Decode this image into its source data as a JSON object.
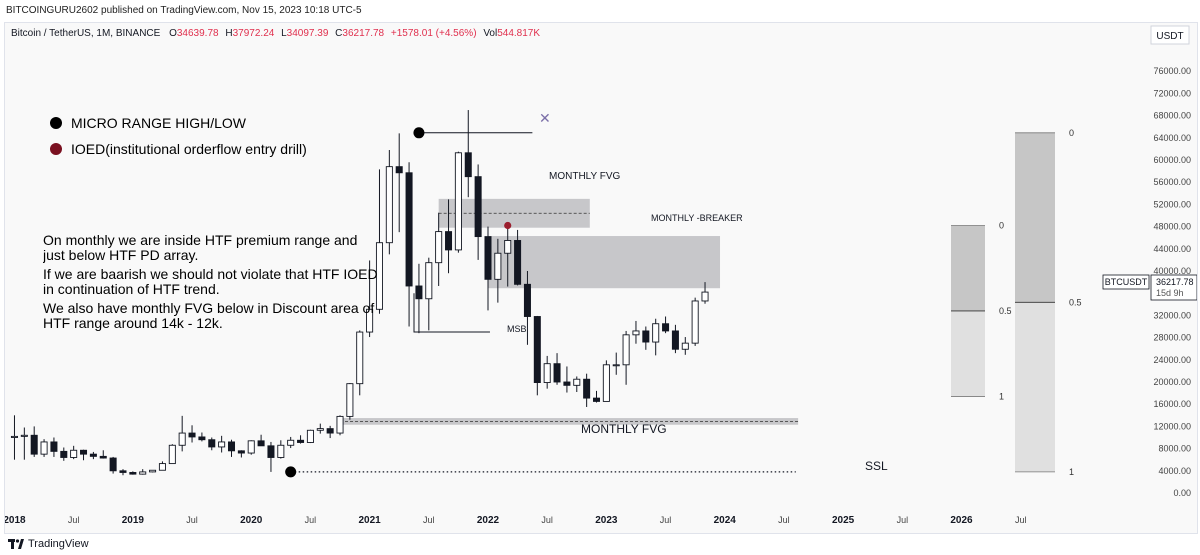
{
  "header": {
    "published": "BITCOINGURU2602 published on TradingView.com, Nov 15, 2023 10:18 UTC-5"
  },
  "chart_header": {
    "symbol": "Bitcoin / TetherUS, 1M, BINANCE",
    "o_label": "O",
    "o": "34639.78",
    "h_label": "H",
    "h": "37972.24",
    "l_label": "L",
    "l": "34097.39",
    "c_label": "C",
    "c": "36217.78",
    "change": "+1578.01 (+4.56%)",
    "vol_label": "Vol",
    "vol": "544.817K"
  },
  "footer": {
    "brand": "TradingView"
  },
  "colors": {
    "up_fill": "#ffffff",
    "down_fill": "#131722",
    "zone": "#c7c7ca",
    "axis_text": "#444444"
  },
  "chart_data": {
    "type": "candlestick",
    "currency": "USDT",
    "ylim": [
      0,
      80000
    ],
    "xlim": [
      2017.92,
      2027.55
    ],
    "y_ticks": [
      "0.00",
      "4000.00",
      "8000.00",
      "12000.00",
      "16000.00",
      "20000.00",
      "24000.00",
      "28000.00",
      "32000.00",
      "36000.00",
      "40000.00",
      "44000.00",
      "48000.00",
      "52000.00",
      "56000.00",
      "60000.00",
      "64000.00",
      "68000.00",
      "72000.00",
      "76000.00"
    ],
    "y_tick_values": [
      0,
      4000,
      8000,
      12000,
      16000,
      20000,
      24000,
      28000,
      32000,
      36000,
      40000,
      44000,
      48000,
      52000,
      56000,
      60000,
      64000,
      68000,
      72000,
      76000
    ],
    "x_ticks": [
      {
        "t": 2018.0,
        "label": "2018",
        "major": true
      },
      {
        "t": 2018.5,
        "label": "Jul",
        "major": false
      },
      {
        "t": 2019.0,
        "label": "2019",
        "major": true
      },
      {
        "t": 2019.5,
        "label": "Jul",
        "major": false
      },
      {
        "t": 2020.0,
        "label": "2020",
        "major": true
      },
      {
        "t": 2020.5,
        "label": "Jul",
        "major": false
      },
      {
        "t": 2021.0,
        "label": "2021",
        "major": true
      },
      {
        "t": 2021.5,
        "label": "Jul",
        "major": false
      },
      {
        "t": 2022.0,
        "label": "2022",
        "major": true
      },
      {
        "t": 2022.5,
        "label": "Jul",
        "major": false
      },
      {
        "t": 2023.0,
        "label": "2023",
        "major": true
      },
      {
        "t": 2023.5,
        "label": "Jul",
        "major": false
      },
      {
        "t": 2024.0,
        "label": "2024",
        "major": true
      },
      {
        "t": 2024.5,
        "label": "Jul",
        "major": false
      },
      {
        "t": 2025.0,
        "label": "2025",
        "major": true
      },
      {
        "t": 2025.5,
        "label": "Jul",
        "major": false
      },
      {
        "t": 2026.0,
        "label": "2026",
        "major": true
      },
      {
        "t": 2026.5,
        "label": "Jul",
        "major": false
      }
    ],
    "candles": [
      [
        10000,
        14000,
        6000,
        10200
      ],
      [
        10200,
        11800,
        6000,
        10400
      ],
      [
        10400,
        12000,
        6500,
        7000
      ],
      [
        7000,
        9700,
        6500,
        9200
      ],
      [
        9200,
        10000,
        6500,
        7500
      ],
      [
        7500,
        8200,
        5800,
        6400
      ],
      [
        6400,
        8500,
        6100,
        7700
      ],
      [
        7700,
        7800,
        5900,
        7000
      ],
      [
        7000,
        7400,
        6100,
        6600
      ],
      [
        6600,
        7700,
        6200,
        6300
      ],
      [
        6300,
        6500,
        3500,
        4000
      ],
      [
        4000,
        4300,
        3200,
        3700
      ],
      [
        3700,
        3900,
        3300,
        3400
      ],
      [
        3400,
        4300,
        3300,
        3800
      ],
      [
        3800,
        4100,
        3700,
        4100
      ],
      [
        4100,
        5700,
        4100,
        5300
      ],
      [
        5300,
        8800,
        5300,
        8600
      ],
      [
        8600,
        13900,
        7500,
        10800
      ],
      [
        10800,
        12200,
        9100,
        10100
      ],
      [
        10100,
        10900,
        9300,
        9600
      ],
      [
        9600,
        10000,
        7700,
        8300
      ],
      [
        8300,
        10300,
        7300,
        9200
      ],
      [
        9200,
        9600,
        6500,
        7600
      ],
      [
        7600,
        7700,
        6400,
        7200
      ],
      [
        7200,
        9500,
        6900,
        9400
      ],
      [
        9400,
        10500,
        8500,
        8500
      ],
      [
        8500,
        9200,
        3800,
        6400
      ],
      [
        6400,
        9500,
        6200,
        8600
      ],
      [
        8600,
        10100,
        8100,
        9500
      ],
      [
        9500,
        10400,
        8900,
        9100
      ],
      [
        9100,
        11400,
        9000,
        11300
      ],
      [
        11300,
        12500,
        10700,
        11600
      ],
      [
        11600,
        12100,
        9900,
        10800
      ],
      [
        10800,
        14000,
        10400,
        13800
      ],
      [
        13800,
        19800,
        13200,
        19700
      ],
      [
        19700,
        29300,
        17600,
        29000
      ],
      [
        29000,
        41900,
        28100,
        33100
      ],
      [
        33100,
        58300,
        32300,
        45100
      ],
      [
        45100,
        61800,
        43000,
        58800
      ],
      [
        58800,
        64800,
        47000,
        57700
      ],
      [
        57700,
        59600,
        30000,
        37300
      ],
      [
        37300,
        41300,
        28800,
        35000
      ],
      [
        35000,
        42400,
        29300,
        41500
      ],
      [
        41500,
        50500,
        37300,
        47100
      ],
      [
        47100,
        52900,
        39600,
        43800
      ],
      [
        43800,
        61500,
        43300,
        61300
      ],
      [
        61300,
        69000,
        53300,
        57000
      ],
      [
        57000,
        59200,
        42000,
        46200
      ],
      [
        46200,
        48000,
        32900,
        38500
      ],
      [
        38500,
        45800,
        34300,
        43200
      ],
      [
        43200,
        48200,
        37200,
        45500
      ],
      [
        45500,
        47400,
        37400,
        37600
      ],
      [
        37600,
        40000,
        26700,
        31800
      ],
      [
        31800,
        31900,
        17600,
        19900
      ],
      [
        19900,
        24700,
        18800,
        23300
      ],
      [
        23300,
        25200,
        19500,
        20000
      ],
      [
        20000,
        22800,
        18100,
        19400
      ],
      [
        19400,
        21000,
        18200,
        20500
      ],
      [
        20500,
        21500,
        15500,
        17100
      ],
      [
        17100,
        18400,
        16300,
        16500
      ],
      [
        16500,
        23900,
        16500,
        23100
      ],
      [
        23100,
        25300,
        21300,
        23100
      ],
      [
        23100,
        29200,
        19500,
        28500
      ],
      [
        28500,
        31000,
        26900,
        29200
      ],
      [
        29200,
        30000,
        25800,
        27200
      ],
      [
        27200,
        31400,
        24800,
        30500
      ],
      [
        30500,
        31800,
        28800,
        29200
      ],
      [
        29200,
        30300,
        25200,
        25900
      ],
      [
        25900,
        28100,
        24900,
        27000
      ],
      [
        27000,
        35200,
        26500,
        34600
      ],
      [
        34600,
        38000,
        34100,
        36200
      ]
    ],
    "annotations": {
      "legend_black": "MICRO RANGE HIGH/LOW",
      "legend_red": "IOED(institutional orderflow entry drill)",
      "note_1": "On monthly we are inside HTF premium range and just below HTF PD array.",
      "note_2": "If we are baarish we should not violate that HTF IOED in continuation of HTF trend.",
      "note_3": "We also have monthly FVG below in Discount area of HTF range around 14k - 12k.",
      "monthly_fvg_top": "MONTHLY FVG",
      "monthly_breaker": "MONTHLY -BREAKER",
      "msb": "MSB",
      "monthly_fvg_bottom": "MONTHLY FVG",
      "ssl": "SSL",
      "price_label": "BTCUSDT",
      "price_value": "36217.78",
      "countdown": "15d 9h",
      "fib_small": [
        "0",
        "0.5",
        "1"
      ],
      "fib_large": [
        "0",
        "0.5",
        "1"
      ]
    },
    "zones": {
      "fvg_top": [
        47800,
        53000
      ],
      "breaker": [
        36900,
        46300
      ],
      "fvg_bottom": [
        12300,
        13500
      ],
      "micro_high": 64900,
      "micro_low": 3800,
      "msb": 29000,
      "ioed": 48200
    },
    "fib_small_range": [
      17400,
      48200
    ],
    "fib_large_range": [
      3800,
      64900
    ]
  }
}
